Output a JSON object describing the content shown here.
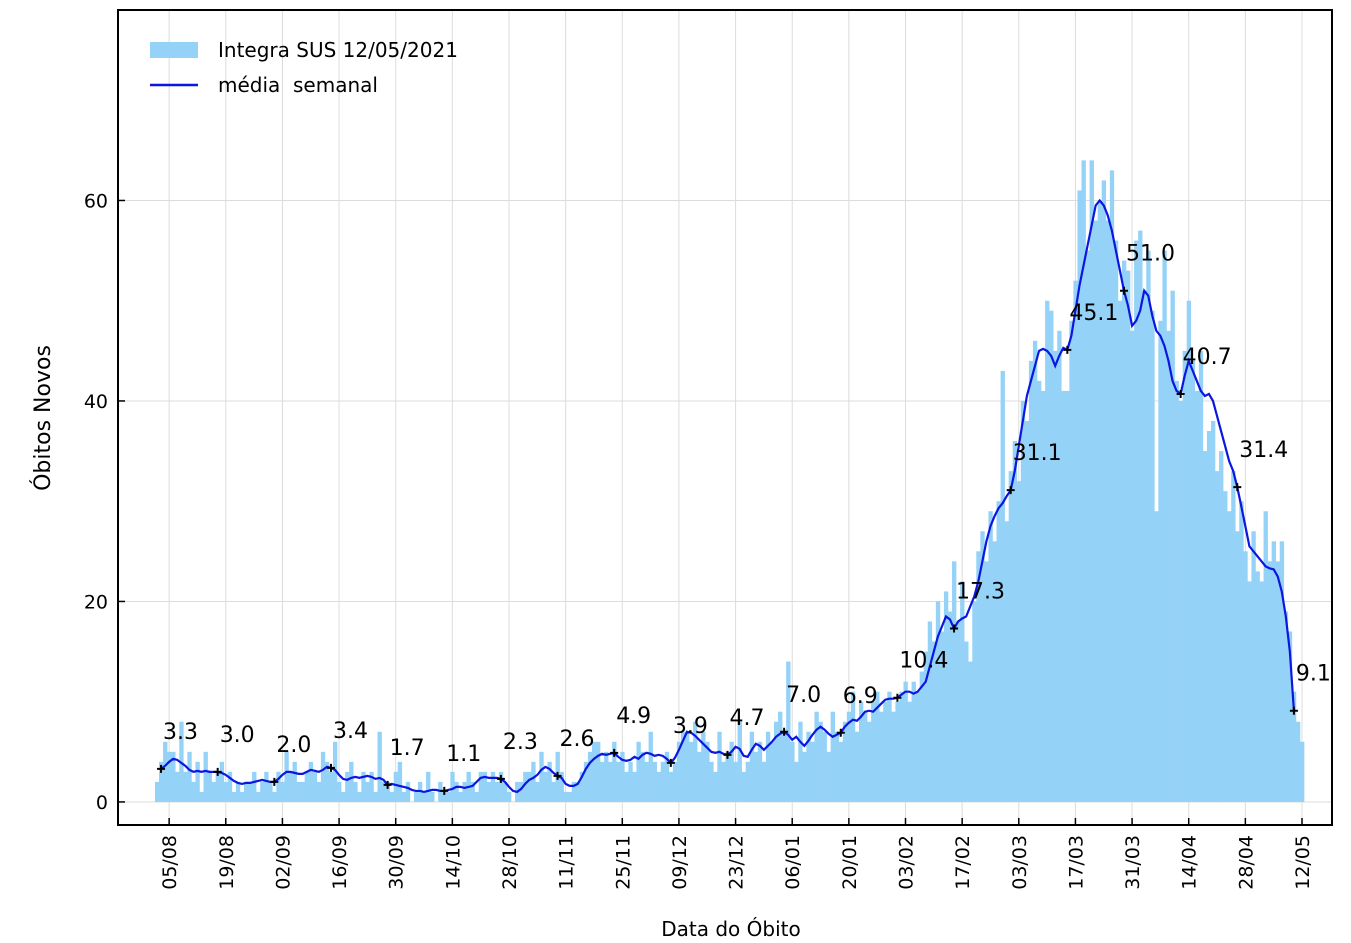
{
  "chart_data": {
    "type": "bar_line",
    "xlabel": "Data do Óbito",
    "ylabel": "Óbitos Novos",
    "ylim": [
      -2.3,
      79
    ],
    "yticks": [
      0,
      20,
      40,
      60
    ],
    "grid": true,
    "legend": "upper left",
    "categories": [
      null,
      null,
      null,
      "05/08",
      null,
      null,
      null,
      null,
      null,
      null,
      null,
      null,
      null,
      null,
      null,
      null,
      null,
      "19/08",
      null,
      null,
      null,
      null,
      null,
      null,
      null,
      null,
      null,
      null,
      null,
      null,
      null,
      "02/09",
      null,
      null,
      null,
      null,
      null,
      null,
      null,
      null,
      null,
      null,
      null,
      null,
      null,
      "16/09",
      null,
      null,
      null,
      null,
      null,
      null,
      null,
      null,
      null,
      null,
      null,
      null,
      null,
      "30/09",
      null,
      null,
      null,
      null,
      null,
      null,
      null,
      null,
      null,
      null,
      null,
      null,
      null,
      "14/10",
      null,
      null,
      null,
      null,
      null,
      null,
      null,
      null,
      null,
      null,
      null,
      null,
      null,
      "28/10",
      null,
      null,
      null,
      null,
      null,
      null,
      null,
      null,
      null,
      null,
      null,
      null,
      null,
      "11/11",
      null,
      null,
      null,
      null,
      null,
      null,
      null,
      null,
      null,
      null,
      null,
      null,
      null,
      "25/11",
      null,
      null,
      null,
      null,
      null,
      null,
      null,
      null,
      null,
      null,
      null,
      null,
      null,
      "09/12",
      null,
      null,
      null,
      null,
      null,
      null,
      null,
      null,
      null,
      null,
      null,
      null,
      null,
      "23/12",
      null,
      null,
      null,
      null,
      null,
      null,
      null,
      null,
      null,
      null,
      null,
      null,
      null,
      "06/01",
      null,
      null,
      null,
      null,
      null,
      null,
      null,
      null,
      null,
      null,
      null,
      null,
      null,
      "20/01",
      null,
      null,
      null,
      null,
      null,
      null,
      null,
      null,
      null,
      null,
      null,
      null,
      null,
      "03/02",
      null,
      null,
      null,
      null,
      null,
      null,
      null,
      null,
      null,
      null,
      null,
      null,
      null,
      "17/02",
      null,
      null,
      null,
      null,
      null,
      null,
      null,
      null,
      null,
      null,
      null,
      null,
      null,
      "03/03",
      null,
      null,
      null,
      null,
      null,
      null,
      null,
      null,
      null,
      null,
      null,
      null,
      null,
      "17/03",
      null,
      null,
      null,
      null,
      null,
      null,
      null,
      null,
      null,
      null,
      null,
      null,
      null,
      "31/03",
      null,
      null,
      null,
      null,
      null,
      null,
      null,
      null,
      null,
      null,
      null,
      null,
      null,
      "14/04",
      null,
      null,
      null,
      null,
      null,
      null,
      null,
      null,
      null,
      null,
      null,
      null,
      null,
      "28/04",
      null,
      null,
      null,
      null,
      null,
      null,
      null,
      null,
      null,
      null,
      null,
      null,
      null,
      "12/05"
    ],
    "series": [
      {
        "name": "Integra SUS 12/05/2021",
        "type": "bar",
        "color": "#95d2f7",
        "values": [
          2,
          4,
          6,
          5,
          5,
          3,
          8,
          3,
          5,
          2,
          4,
          1,
          5,
          3,
          2,
          3,
          4,
          2,
          3,
          1,
          2,
          1,
          2,
          2,
          3,
          1,
          2,
          3,
          2,
          1,
          3,
          2,
          5,
          3,
          4,
          2,
          2,
          3,
          4,
          3,
          2,
          5,
          4,
          3,
          6,
          2,
          1,
          3,
          4,
          2,
          1,
          3,
          2,
          3,
          1,
          7,
          2,
          2,
          1,
          3,
          4,
          1,
          2,
          0,
          1,
          2,
          1,
          3,
          1,
          0,
          2,
          1,
          1,
          3,
          2,
          1,
          2,
          3,
          2,
          1,
          3,
          3,
          2,
          3,
          2,
          3,
          2,
          1,
          0,
          2,
          2,
          3,
          3,
          4,
          2,
          5,
          3,
          4,
          2,
          5,
          3,
          1,
          1,
          2,
          2,
          3,
          4,
          5,
          6,
          6,
          4,
          5,
          4,
          6,
          4,
          5,
          3,
          4,
          3,
          6,
          5,
          4,
          7,
          4,
          3,
          4,
          5,
          3,
          4,
          6,
          7,
          7,
          6,
          8,
          5,
          7,
          6,
          4,
          3,
          7,
          4,
          5,
          6,
          4,
          8,
          3,
          4,
          7,
          5,
          6,
          4,
          7,
          6,
          8,
          9,
          7,
          14,
          6,
          4,
          8,
          5,
          7,
          6,
          9,
          8,
          7,
          5,
          9,
          7,
          6,
          8,
          9,
          11,
          7,
          10,
          9,
          8,
          10,
          11,
          9,
          10,
          11,
          9,
          10,
          11,
          12,
          10,
          12,
          11,
          13,
          15,
          18,
          16,
          20,
          17,
          21,
          19,
          24,
          18,
          22,
          16,
          14,
          20,
          25,
          27,
          24,
          29,
          26,
          30,
          43,
          28,
          33,
          36,
          32,
          40,
          38,
          44,
          46,
          42,
          41,
          50,
          49,
          45,
          47,
          41,
          41,
          48,
          52,
          61,
          64,
          55,
          64,
          58,
          60,
          62,
          58,
          63,
          56,
          50,
          54,
          53,
          47,
          56,
          57,
          51,
          55,
          49,
          29,
          48,
          55,
          47,
          51,
          42,
          40,
          45,
          50,
          44,
          41,
          45,
          35,
          37,
          38,
          33,
          35,
          31,
          29,
          33,
          27,
          30,
          25,
          22,
          27,
          23,
          22,
          29,
          24,
          26,
          24,
          26,
          19,
          17,
          11,
          8,
          6
        ]
      },
      {
        "name": "média  semanal",
        "type": "line",
        "color": "#0b16e0",
        "values": [
          null,
          3.3,
          3.6,
          4.0,
          4.3,
          4.2,
          3.9,
          3.6,
          3.2,
          3.0,
          3.1,
          3.0,
          3.1,
          3.0,
          3.0,
          3.0,
          2.9,
          2.7,
          2.4,
          2.1,
          1.9,
          1.8,
          1.9,
          1.9,
          2.0,
          2.1,
          2.2,
          2.1,
          2.0,
          2.0,
          2.3,
          2.7,
          3.0,
          3.0,
          2.9,
          2.8,
          2.8,
          3.0,
          3.2,
          3.1,
          3.0,
          3.2,
          3.5,
          3.4,
          3.2,
          2.7,
          2.3,
          2.2,
          2.4,
          2.5,
          2.4,
          2.5,
          2.6,
          2.5,
          2.3,
          2.4,
          2.2,
          1.7,
          1.8,
          1.7,
          1.6,
          1.5,
          1.4,
          1.2,
          1.1,
          1.1,
          1.0,
          1.1,
          1.2,
          1.2,
          1.1,
          1.1,
          1.2,
          1.3,
          1.5,
          1.5,
          1.4,
          1.5,
          1.6,
          2.0,
          2.4,
          2.5,
          2.4,
          2.4,
          2.4,
          2.3,
          2.0,
          1.5,
          1.1,
          1.0,
          1.3,
          1.8,
          2.2,
          2.4,
          2.7,
          3.2,
          3.5,
          3.3,
          2.9,
          2.6,
          2.4,
          1.8,
          1.6,
          1.6,
          1.8,
          2.5,
          3.3,
          3.9,
          4.3,
          4.6,
          4.8,
          4.7,
          4.8,
          4.9,
          4.5,
          4.2,
          4.1,
          4.2,
          4.5,
          4.3,
          4.7,
          4.9,
          4.8,
          4.6,
          4.7,
          4.6,
          4.3,
          3.9,
          4.4,
          5.2,
          6.1,
          7.0,
          6.9,
          6.6,
          6.2,
          5.8,
          5.4,
          5.0,
          4.9,
          5.0,
          4.8,
          4.7,
          5.0,
          5.5,
          5.3,
          4.6,
          4.5,
          5.2,
          5.8,
          5.6,
          5.2,
          5.6,
          6.0,
          6.5,
          6.8,
          7.0,
          6.7,
          6.2,
          6.5,
          6.0,
          5.6,
          6.1,
          6.7,
          7.2,
          7.5,
          7.2,
          6.8,
          6.5,
          6.7,
          6.9,
          7.5,
          7.9,
          8.2,
          8.1,
          8.5,
          9.0,
          9.1,
          9.0,
          9.4,
          9.8,
          10.2,
          10.3,
          10.3,
          10.4,
          10.7,
          11.0,
          11.0,
          10.8,
          11.0,
          11.5,
          12.0,
          13.5,
          15.0,
          16.5,
          17.5,
          18.5,
          18.2,
          17.3,
          18.0,
          18.3,
          18.5,
          19.5,
          20.5,
          22.0,
          24.0,
          26.0,
          27.5,
          28.5,
          29.3,
          29.8,
          30.5,
          31.1,
          33.0,
          35.5,
          38.0,
          40.5,
          42.0,
          43.5,
          45.0,
          45.2,
          45.0,
          44.5,
          43.5,
          44.5,
          45.3,
          45.1,
          46.5,
          49.0,
          51.5,
          53.5,
          55.5,
          57.5,
          59.5,
          60.0,
          59.5,
          58.5,
          57.0,
          55.0,
          53.0,
          51.0,
          49.5,
          47.5,
          48.0,
          49.0,
          51.0,
          50.5,
          48.5,
          47.0,
          46.5,
          45.5,
          44.0,
          42.0,
          41.0,
          40.7,
          42.5,
          44.0,
          43.0,
          42.0,
          41.0,
          40.5,
          40.7,
          40.0,
          38.5,
          37.0,
          35.5,
          34.0,
          33.0,
          31.4,
          29.5,
          27.5,
          25.5,
          25.0,
          24.5,
          24.0,
          23.5,
          23.3,
          23.2,
          22.5,
          21.0,
          18.5,
          15.0,
          9.1,
          null,
          null
        ],
        "value_labels": [
          null,
          "3.3",
          null,
          null,
          null,
          null,
          null,
          null,
          null,
          null,
          null,
          null,
          null,
          null,
          null,
          "3.0",
          null,
          null,
          null,
          null,
          null,
          null,
          null,
          null,
          null,
          null,
          null,
          null,
          null,
          "2.0",
          null,
          null,
          null,
          null,
          null,
          null,
          null,
          null,
          null,
          null,
          null,
          null,
          null,
          "3.4",
          null,
          null,
          null,
          null,
          null,
          null,
          null,
          null,
          null,
          null,
          null,
          null,
          null,
          "1.7",
          null,
          null,
          null,
          null,
          null,
          null,
          null,
          null,
          null,
          null,
          null,
          null,
          null,
          "1.1",
          null,
          null,
          null,
          null,
          null,
          null,
          null,
          null,
          null,
          null,
          null,
          null,
          null,
          "2.3",
          null,
          null,
          null,
          null,
          null,
          null,
          null,
          null,
          null,
          null,
          null,
          null,
          null,
          "2.6",
          null,
          null,
          null,
          null,
          null,
          null,
          null,
          null,
          null,
          null,
          null,
          null,
          null,
          "4.9",
          null,
          null,
          null,
          null,
          null,
          null,
          null,
          null,
          null,
          null,
          null,
          null,
          null,
          "3.9",
          null,
          null,
          null,
          null,
          null,
          null,
          null,
          null,
          null,
          null,
          null,
          null,
          null,
          "4.7",
          null,
          null,
          null,
          null,
          null,
          null,
          null,
          null,
          null,
          null,
          null,
          null,
          null,
          "7.0",
          null,
          null,
          null,
          null,
          null,
          null,
          null,
          null,
          null,
          null,
          null,
          null,
          null,
          "6.9",
          null,
          null,
          null,
          null,
          null,
          null,
          null,
          null,
          null,
          null,
          null,
          null,
          null,
          "10.4",
          null,
          null,
          null,
          null,
          null,
          null,
          null,
          null,
          null,
          null,
          null,
          null,
          null,
          "17.3",
          null,
          null,
          null,
          null,
          null,
          null,
          null,
          null,
          null,
          null,
          null,
          null,
          null,
          "31.1",
          null,
          null,
          null,
          null,
          null,
          null,
          null,
          null,
          null,
          null,
          null,
          null,
          null,
          "45.1",
          null,
          null,
          null,
          null,
          null,
          null,
          null,
          null,
          null,
          null,
          null,
          null,
          null,
          "51.0",
          null,
          null,
          null,
          null,
          null,
          null,
          null,
          null,
          null,
          null,
          null,
          null,
          null,
          "40.7",
          null,
          null,
          null,
          null,
          null,
          null,
          null,
          null,
          null,
          null,
          null,
          null,
          null,
          "31.4",
          null,
          null,
          null,
          null,
          null,
          null,
          null,
          null,
          null,
          null,
          null,
          null,
          null,
          "9.1",
          null,
          null
        ]
      }
    ]
  }
}
